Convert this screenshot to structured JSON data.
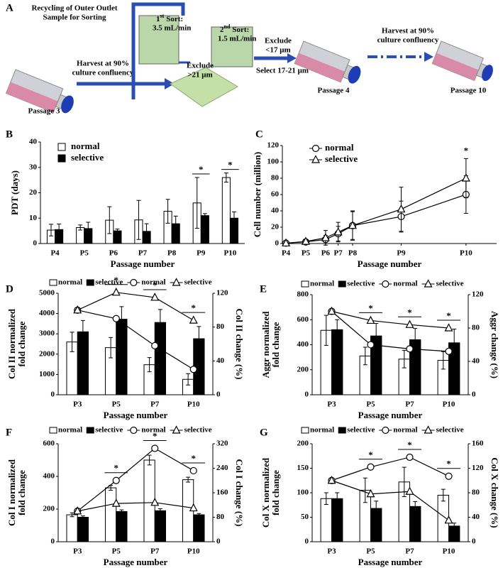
{
  "diagram": {
    "label": "A",
    "recycle": [
      "Recycling of Outer Outlet",
      "Sample for Sorting"
    ],
    "harvest_1": [
      "Harvest at 90%",
      "culture confluency"
    ],
    "passage_start": "Passage 3",
    "sort_1": {
      "number": "1",
      "ordinal": "st",
      "title": "Sort:",
      "rate": "3.5 mL/min"
    },
    "exclude_1": [
      "Exclude",
      ">21 μm"
    ],
    "sort_2": {
      "number": "2",
      "ordinal": "nd",
      "title": "Sort:",
      "rate": "1.5 mL/min"
    },
    "exclude_2": [
      "Exclude",
      "<17 μm"
    ],
    "select": "Select 17-21 μm",
    "passage_mid": "Passage 4",
    "harvest_2": [
      "Harvest at 90%",
      "culture confluency"
    ],
    "passage_end": "Passage 10"
  },
  "chart_data": [
    {
      "type": "bar",
      "label": "B",
      "ylabel": "PDT (days)",
      "xlabel": "Passage number",
      "categories": [
        "P4",
        "P5",
        "P6",
        "P7",
        "P8",
        "P9",
        "P10"
      ],
      "ylim": [
        0,
        40
      ],
      "yticks": [
        0,
        10,
        20,
        30,
        40
      ],
      "legend": "upper left",
      "series": [
        {
          "name": "normal",
          "color": "#ffffff",
          "values": [
            5.3,
            6.3,
            9.2,
            9.3,
            12.7,
            16,
            26
          ],
          "errors": [
            2.3,
            1,
            5.3,
            7.7,
            4.7,
            10,
            1.8
          ]
        },
        {
          "name": "selective",
          "color": "#000000",
          "values": [
            5.5,
            5.9,
            5,
            4.8,
            7.8,
            11,
            10
          ],
          "errors": [
            2.2,
            2.5,
            0.7,
            3,
            3,
            0.8,
            2.5
          ]
        }
      ],
      "significance": [
        {
          "label": "*",
          "category": "P9"
        },
        {
          "label": "*",
          "category": "P10"
        }
      ]
    },
    {
      "type": "line",
      "label": "C",
      "ylabel": "Cell number (million)",
      "xlabel": "Passage number",
      "x": [
        0,
        11,
        22,
        29,
        37,
        64,
        100
      ],
      "xlim": [
        -2,
        117
      ],
      "xticks": [
        {
          "value": 0,
          "label": "P4"
        },
        {
          "value": 11,
          "label": "P5"
        },
        {
          "value": 22,
          "label": "P6"
        },
        {
          "value": 29,
          "label": "P7"
        },
        {
          "value": 37,
          "label": "P8"
        },
        {
          "value": 64,
          "label": "P9"
        },
        {
          "value": 100,
          "label": "P10"
        }
      ],
      "ylim": [
        0,
        120
      ],
      "yticks": [
        0,
        20,
        40,
        60,
        80,
        100,
        120
      ],
      "legend": "upper left",
      "series": [
        {
          "name": "normal",
          "color": "#000000",
          "marker": "circle",
          "values": [
            0.5,
            2,
            5,
            12,
            22,
            33,
            60
          ],
          "errors": [
            1,
            1.5,
            5,
            9,
            17,
            19,
            23
          ]
        },
        {
          "name": "selective",
          "color": "#000000",
          "marker": "triangle",
          "values": [
            0.5,
            2.5,
            7,
            14,
            22,
            42,
            80
          ],
          "errors": [
            1,
            2,
            9,
            12,
            18,
            27,
            24
          ]
        }
      ],
      "significance": [
        {
          "label": "*",
          "x": 100
        }
      ]
    },
    {
      "type": "bar_line",
      "label": "D",
      "ylabel": [
        "Col II normalized",
        "fold change"
      ],
      "y2label": "Col II change (%)",
      "xlabel": "Passage number",
      "categories": [
        "P3",
        "P5",
        "P7",
        "P10"
      ],
      "ylim": [
        0,
        5000
      ],
      "yticks": [
        0,
        1000,
        2000,
        3000,
        4000,
        5000
      ],
      "y2lim": [
        0,
        120
      ],
      "y2ticks": [
        0,
        40,
        80,
        120
      ],
      "legend": "top",
      "series": [
        {
          "name": "normal",
          "type": "bar",
          "color": "#ffffff",
          "values": [
            2600,
            2320,
            1480,
            760
          ],
          "errors": [
            480,
            500,
            350,
            280
          ]
        },
        {
          "name": "selective",
          "type": "bar",
          "color": "#000000",
          "values": [
            3100,
            3720,
            3560,
            2760
          ],
          "errors": [
            560,
            620,
            640,
            600
          ]
        },
        {
          "name": "normal",
          "type": "line",
          "axis": "y2",
          "marker": "circle",
          "color": "#000000",
          "values": [
            100,
            90,
            58,
            30
          ]
        },
        {
          "name": "selective",
          "type": "line",
          "axis": "y2",
          "marker": "triangle",
          "color": "#000000",
          "values": [
            100,
            121,
            115,
            88
          ]
        }
      ],
      "significance": [
        {
          "label": "*",
          "category": "P5"
        },
        {
          "label": "*",
          "category": "P7"
        },
        {
          "label": "*",
          "category": "P10"
        }
      ]
    },
    {
      "type": "bar_line",
      "label": "E",
      "ylabel": [
        "Aggr normalized",
        "fold change"
      ],
      "y2label": "Aggr change (%)",
      "xlabel": "Passage number",
      "categories": [
        "P3",
        "P5",
        "P7",
        "P10"
      ],
      "ylim": [
        0,
        800
      ],
      "yticks": [
        0,
        200,
        400,
        600,
        800
      ],
      "y2lim": [
        0,
        120
      ],
      "y2ticks": [
        0,
        40,
        80,
        120
      ],
      "legend": "top",
      "series": [
        {
          "name": "normal",
          "type": "bar",
          "color": "#ffffff",
          "values": [
            515,
            310,
            285,
            275
          ],
          "errors": [
            120,
            70,
            70,
            70
          ]
        },
        {
          "name": "selective",
          "type": "bar",
          "color": "#000000",
          "values": [
            520,
            470,
            440,
            415
          ],
          "errors": [
            80,
            100,
            90,
            110
          ]
        },
        {
          "name": "normal",
          "type": "line",
          "axis": "y2",
          "marker": "circle",
          "color": "#000000",
          "values": [
            100,
            60,
            55,
            52
          ]
        },
        {
          "name": "selective",
          "type": "line",
          "axis": "y2",
          "marker": "triangle",
          "color": "#000000",
          "values": [
            100,
            89,
            84,
            80
          ]
        }
      ],
      "significance": [
        {
          "label": "*",
          "category": "P5"
        },
        {
          "label": "*",
          "category": "P7"
        },
        {
          "label": "*",
          "category": "P10"
        }
      ]
    },
    {
      "type": "bar_line",
      "label": "F",
      "ylabel": [
        "Col I normalized",
        "fold change"
      ],
      "y2label": "Col I change (%)",
      "xlabel": "Passage number",
      "categories": [
        "P3",
        "P5",
        "P7",
        "P10"
      ],
      "ylim": [
        0,
        600
      ],
      "yticks": [
        0,
        200,
        400,
        600
      ],
      "y2lim": [
        0,
        320
      ],
      "y2ticks": [
        0,
        80,
        160,
        240,
        320
      ],
      "legend": "top",
      "series": [
        {
          "name": "normal",
          "type": "bar",
          "color": "#ffffff",
          "values": [
            165,
            330,
            500,
            380
          ],
          "errors": [
            12,
            15,
            30,
            15
          ]
        },
        {
          "name": "selective",
          "type": "bar",
          "color": "#000000",
          "values": [
            150,
            185,
            190,
            165
          ],
          "errors": [
            8,
            10,
            12,
            8
          ]
        },
        {
          "name": "normal",
          "type": "line",
          "axis": "y2",
          "marker": "circle",
          "color": "#000000",
          "values": [
            100,
            200,
            305,
            232
          ]
        },
        {
          "name": "selective",
          "type": "line",
          "axis": "y2",
          "marker": "triangle",
          "color": "#000000",
          "values": [
            100,
            125,
            128,
            110
          ]
        }
      ],
      "significance": [
        {
          "label": "*",
          "category": "P5"
        },
        {
          "label": "*",
          "category": "P7"
        },
        {
          "label": "*",
          "category": "P10"
        }
      ]
    },
    {
      "type": "bar_line",
      "label": "G",
      "ylabel": [
        "Col X normalized",
        "fold change"
      ],
      "y2label": "Col X change (%)",
      "xlabel": "Passage number",
      "categories": [
        "P3",
        "P5",
        "P7",
        "P10"
      ],
      "ylim": [
        0,
        200
      ],
      "yticks": [
        0,
        50,
        100,
        150,
        200
      ],
      "y2lim": [
        0,
        160
      ],
      "y2ticks": [
        0,
        40,
        80,
        120,
        160
      ],
      "legend": "top",
      "series": [
        {
          "name": "normal",
          "type": "bar",
          "color": "#ffffff",
          "values": [
            88,
            105,
            122,
            95
          ],
          "errors": [
            12,
            25,
            30,
            12
          ]
        },
        {
          "name": "selective",
          "type": "bar",
          "color": "#000000",
          "values": [
            88,
            68,
            72,
            32
          ],
          "errors": [
            12,
            15,
            10,
            6
          ]
        },
        {
          "name": "normal",
          "type": "line",
          "axis": "y2",
          "marker": "circle",
          "color": "#000000",
          "values": [
            100,
            122,
            138,
            107
          ]
        },
        {
          "name": "selective",
          "type": "line",
          "axis": "y2",
          "marker": "triangle",
          "color": "#000000",
          "values": [
            100,
            78,
            82,
            35
          ]
        }
      ],
      "significance": [
        {
          "label": "*",
          "category": "P5"
        },
        {
          "label": "*",
          "category": "P7"
        },
        {
          "label": "*",
          "category": "P10"
        }
      ]
    }
  ]
}
